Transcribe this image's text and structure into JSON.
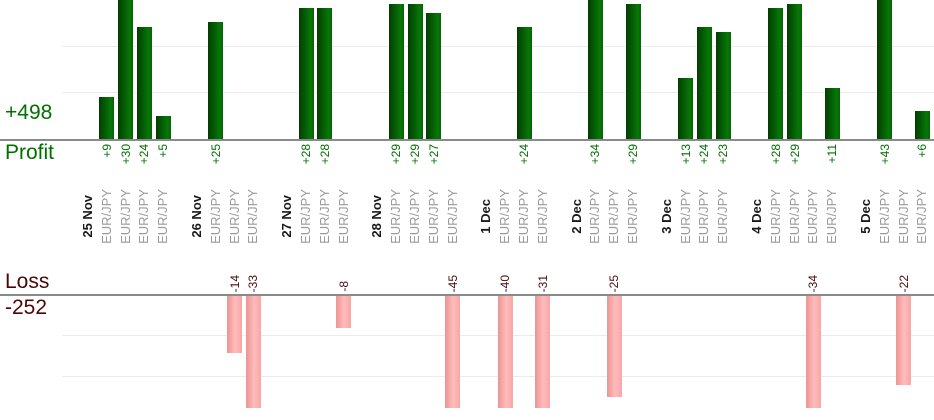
{
  "axis": {
    "profit_total": "+498",
    "profit_label": "Profit",
    "loss_label": "Loss",
    "loss_total": "-252"
  },
  "chart_data": {
    "type": "bar",
    "title": "",
    "description": "Daily trade results split into profit bars (above upper axis) and loss bars (below lower axis), one column per trade",
    "instrument": "EUR/JPY",
    "groups": [
      {
        "date": "25 Nov",
        "trades": [
          9,
          30,
          24,
          5
        ]
      },
      {
        "date": "26 Nov",
        "trades": [
          25,
          -14,
          -33
        ]
      },
      {
        "date": "27 Nov",
        "trades": [
          28,
          28,
          -8
        ]
      },
      {
        "date": "28 Nov",
        "trades": [
          29,
          29,
          27,
          -45
        ]
      },
      {
        "date": "1 Dec",
        "trades": [
          -40,
          24,
          -31
        ]
      },
      {
        "date": "2 Dec",
        "trades": [
          34,
          -25,
          29
        ]
      },
      {
        "date": "3 Dec",
        "trades": [
          13,
          24,
          23
        ]
      },
      {
        "date": "4 Dec",
        "trades": [
          28,
          29,
          -34,
          11
        ]
      },
      {
        "date": "5 Dec",
        "trades": [
          43,
          -22,
          6
        ]
      }
    ],
    "totals": {
      "profit": 498,
      "loss": -252
    },
    "profit_axis": {
      "gridline_interval": 10,
      "visible_range": [
        0,
        30
      ],
      "clipped_above": 30
    },
    "loss_axis": {
      "gridline_interval": 10,
      "visible_range": [
        0,
        -28
      ],
      "clipped_below": -28
    },
    "legend_position": "none",
    "grid": true
  },
  "colors": {
    "profit_bar": "#077807",
    "profit_bar_dark": "#023e02",
    "loss_bar": "#ffbcbc",
    "loss_bar_dark": "#ee9393",
    "profit_text": "#007000",
    "loss_text": "#4a0d0d",
    "date_text": "#1a1a1a",
    "instrument_text": "#9a9a9a",
    "baseline": "#8a8a8a",
    "gridline": "#ececec"
  }
}
